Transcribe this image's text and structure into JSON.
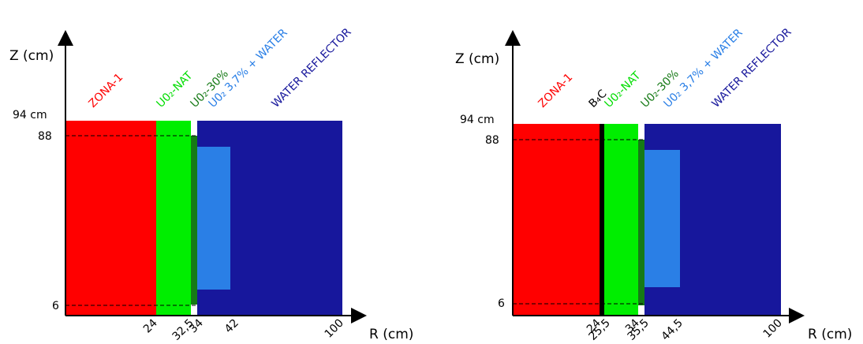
{
  "colors": {
    "zona1": "#ff0000",
    "u02_nat": "#00ee00",
    "u02_30": "#167a16",
    "u02_37_water": "#2a7fe6",
    "water_reflector": "#17179c",
    "b4c": "#000000",
    "axis": "#000000"
  },
  "common": {
    "z_axis_label": "Z (cm)",
    "r_axis_label": "R (cm)",
    "top_label": "94 cm",
    "z_tick_88": "88",
    "z_tick_6": "6"
  },
  "left": {
    "labels": {
      "zona1": "ZONA-1",
      "u02_nat": "U0₂-NAT",
      "u02_30": "U0₂-30%",
      "u02_37": "U0₂ 3,7% + WATER",
      "reflector": "WATER REFLECTOR"
    },
    "r_ticks": [
      "24",
      "32,5",
      "34",
      "42",
      "100"
    ]
  },
  "right": {
    "labels": {
      "zona1": "ZONA-1",
      "b4c": "B₄C",
      "u02_nat": "U0₂-NAT",
      "u02_30": "U0₂-30%",
      "u02_37": "U0₂ 3,7% + WATER",
      "reflector": "WATER REFLECTOR"
    },
    "r_ticks": [
      "24",
      "25,5",
      "34",
      "35,5",
      "44,5",
      "100"
    ]
  }
}
